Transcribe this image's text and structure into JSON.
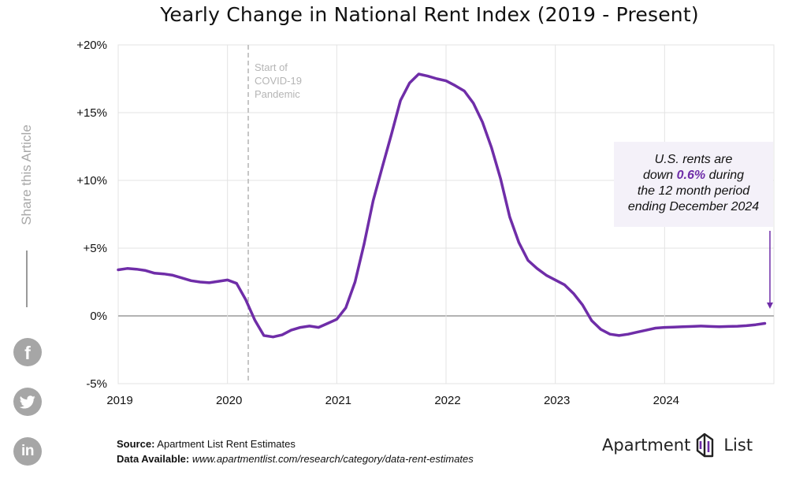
{
  "title": "Yearly Change in National Rent Index (2019 - Present)",
  "share": {
    "label": "Share this Article",
    "items": [
      {
        "name": "facebook",
        "icon": "facebook-icon",
        "glyph": "f"
      },
      {
        "name": "twitter",
        "icon": "twitter-icon",
        "glyph": ""
      },
      {
        "name": "linkedin",
        "icon": "linkedin-icon",
        "glyph": "in"
      }
    ]
  },
  "annotation": {
    "x": 2020.19,
    "lines": [
      "Start of",
      "COVID-19",
      "Pandemic"
    ]
  },
  "callout": {
    "line1": "U.S. rents are",
    "line2_pre": "down ",
    "line2_value": "0.6%",
    "line2_post": " during",
    "line3": "the 12 month period",
    "line4": "ending December 2024"
  },
  "footer": {
    "source_label": "Source:",
    "source_value": " Apartment List Rent Estimates",
    "data_label": "Data Available:",
    "data_value": " www.apartmentlist.com/research/category/data-rent-estimates"
  },
  "brand": {
    "name_left": "Apartment",
    "name_right": "List",
    "icon": "apartment-list-logo-icon"
  },
  "colors": {
    "line": "#6f2da8",
    "zero_line": "#b3b3b3",
    "grid": "#e3e3e3",
    "annotation": "#b5b5b5"
  },
  "chart_data": {
    "type": "line",
    "title": "Yearly Change in National Rent Index (2019 - Present)",
    "xlabel": "",
    "ylabel": "",
    "xlim": [
      2019,
      2025
    ],
    "ylim": [
      -5,
      20
    ],
    "x_ticks": [
      2019,
      2020,
      2021,
      2022,
      2023,
      2024
    ],
    "x_tick_labels": [
      "2019",
      "2020",
      "2021",
      "2022",
      "2023",
      "2024"
    ],
    "y_ticks": [
      -5,
      0,
      5,
      10,
      15,
      20
    ],
    "y_tick_labels": [
      "-5%",
      "0%",
      "+5%",
      "+10%",
      "+15%",
      "+20%"
    ],
    "grid": true,
    "series": [
      {
        "name": "",
        "x": [
          2019.0,
          2019.083,
          2019.167,
          2019.25,
          2019.333,
          2019.417,
          2019.5,
          2019.583,
          2019.667,
          2019.75,
          2019.833,
          2019.917,
          2020.0,
          2020.083,
          2020.167,
          2020.25,
          2020.333,
          2020.417,
          2020.5,
          2020.583,
          2020.667,
          2020.75,
          2020.833,
          2020.917,
          2021.0,
          2021.083,
          2021.167,
          2021.25,
          2021.333,
          2021.417,
          2021.5,
          2021.583,
          2021.667,
          2021.75,
          2021.833,
          2021.917,
          2022.0,
          2022.083,
          2022.167,
          2022.25,
          2022.333,
          2022.417,
          2022.5,
          2022.583,
          2022.667,
          2022.75,
          2022.833,
          2022.917,
          2023.0,
          2023.083,
          2023.167,
          2023.25,
          2023.333,
          2023.417,
          2023.5,
          2023.583,
          2023.667,
          2023.75,
          2023.833,
          2023.917,
          2024.0,
          2024.083,
          2024.167,
          2024.25,
          2024.333,
          2024.417,
          2024.5,
          2024.583,
          2024.667,
          2024.75,
          2024.833,
          2024.917
        ],
        "values": [
          3.4,
          3.5,
          3.45,
          3.35,
          3.15,
          3.1,
          3.0,
          2.8,
          2.6,
          2.5,
          2.45,
          2.55,
          2.65,
          2.4,
          1.2,
          -0.3,
          -1.45,
          -1.55,
          -1.4,
          -1.05,
          -0.85,
          -0.75,
          -0.85,
          -0.55,
          -0.25,
          0.6,
          2.5,
          5.3,
          8.5,
          11.0,
          13.4,
          15.9,
          17.2,
          17.85,
          17.7,
          17.5,
          17.35,
          17.0,
          16.6,
          15.7,
          14.3,
          12.4,
          10.1,
          7.3,
          5.4,
          4.1,
          3.5,
          3.0,
          2.65,
          2.3,
          1.65,
          0.8,
          -0.35,
          -1.0,
          -1.35,
          -1.45,
          -1.35,
          -1.2,
          -1.05,
          -0.9,
          -0.85,
          -0.83,
          -0.8,
          -0.78,
          -0.75,
          -0.78,
          -0.8,
          -0.78,
          -0.76,
          -0.72,
          -0.65,
          -0.55
        ]
      }
    ]
  }
}
